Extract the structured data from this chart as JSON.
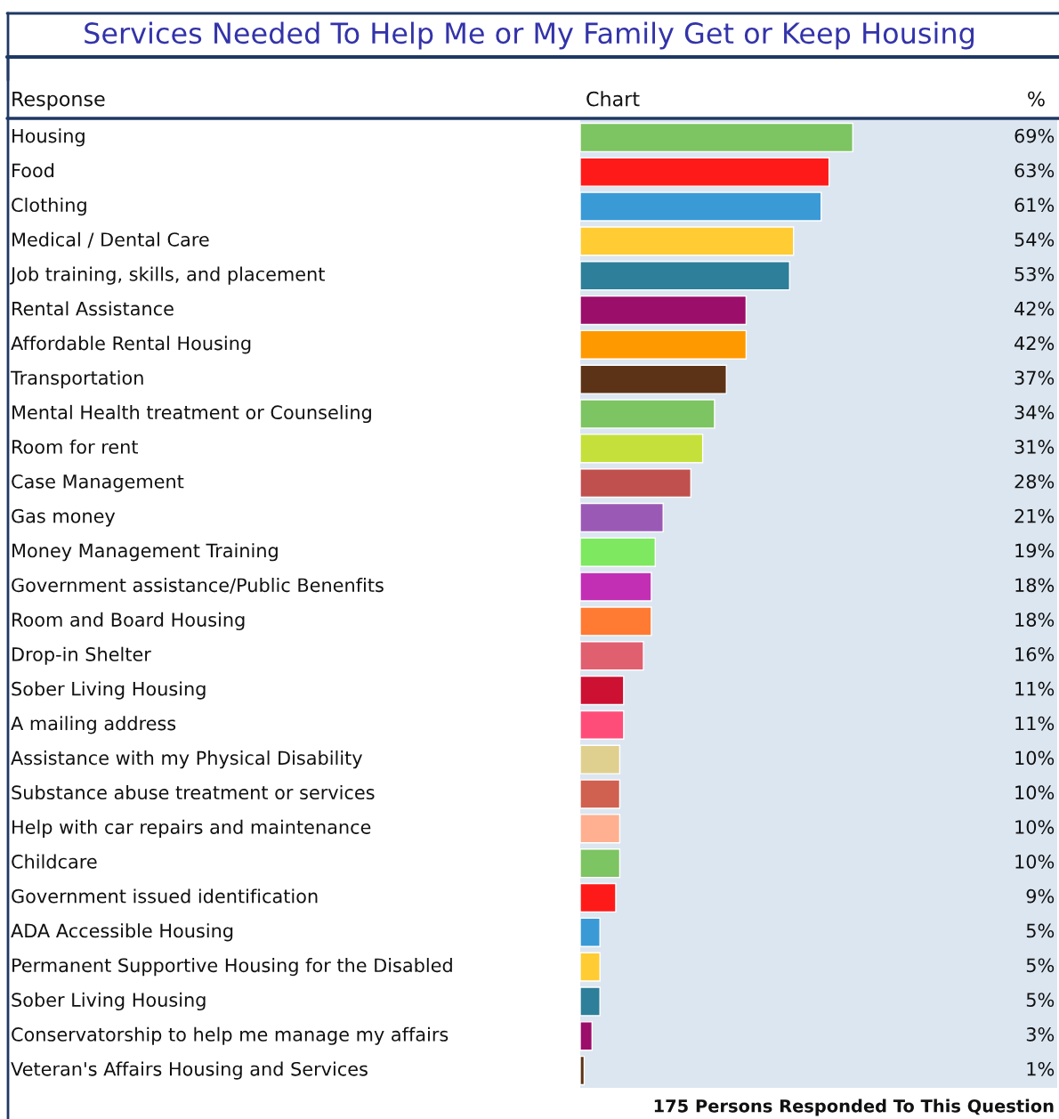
{
  "chart_data": {
    "type": "bar",
    "orientation": "horizontal",
    "title": "Services Needed To Help Me or My Family Get or Keep Housing",
    "categories": [
      "Housing",
      "Food",
      "Clothing",
      "Medical / Dental Care",
      "Job training, skills, and placement",
      "Rental Assistance",
      "Affordable Rental Housing",
      "Transportation",
      "Mental Health treatment or Counseling",
      "Room for rent",
      "Case Management",
      "Gas money",
      "Money Management Training",
      "Government assistance/Public Benenfits",
      "Room and Board Housing",
      "Drop-in Shelter",
      "Sober Living Housing",
      "A mailing address",
      "Assistance with my Physical Disability",
      "Substance abuse treatment or services",
      "Help with car repairs and maintenance",
      "Childcare",
      "Government issued identification",
      "ADA Accessible Housing",
      "Permanent Supportive Housing for the Disabled",
      "Sober Living Housing",
      "Conservatorship to help me manage my affairs",
      "Veteran's Affairs Housing and Services"
    ],
    "values": [
      69,
      63,
      61,
      54,
      53,
      42,
      42,
      37,
      34,
      31,
      28,
      21,
      19,
      18,
      18,
      16,
      11,
      11,
      10,
      10,
      10,
      10,
      9,
      5,
      5,
      5,
      3,
      1
    ],
    "value_labels": [
      "69%",
      "63%",
      "61%",
      "54%",
      "53%",
      "42%",
      "42%",
      "37%",
      "34%",
      "31%",
      "28%",
      "21%",
      "19%",
      "18%",
      "18%",
      "16%",
      "11%",
      "11%",
      "10%",
      "10%",
      "10%",
      "10%",
      "9%",
      "5%",
      "5%",
      "5%",
      "3%",
      "1%"
    ],
    "colors": [
      "#7dc462",
      "#ff1a1a",
      "#3a9ad6",
      "#ffcc33",
      "#2e7f99",
      "#9b0e6a",
      "#ff9900",
      "#5c3317",
      "#7dc462",
      "#c5e03a",
      "#c0504d",
      "#9b59b6",
      "#7ee860",
      "#c22fb5",
      "#ff7a33",
      "#e06070",
      "#cc1133",
      "#ff4d7a",
      "#e0d090",
      "#d06050",
      "#ffb090",
      "#7dc462",
      "#ff1a1a",
      "#3a9ad6",
      "#ffcc33",
      "#2e7f99",
      "#9b0e6a",
      "#5c3317"
    ],
    "annotations": [
      "Response",
      "Chart",
      "%",
      "175 Persons Responded To This Question"
    ],
    "legend": false
  }
}
